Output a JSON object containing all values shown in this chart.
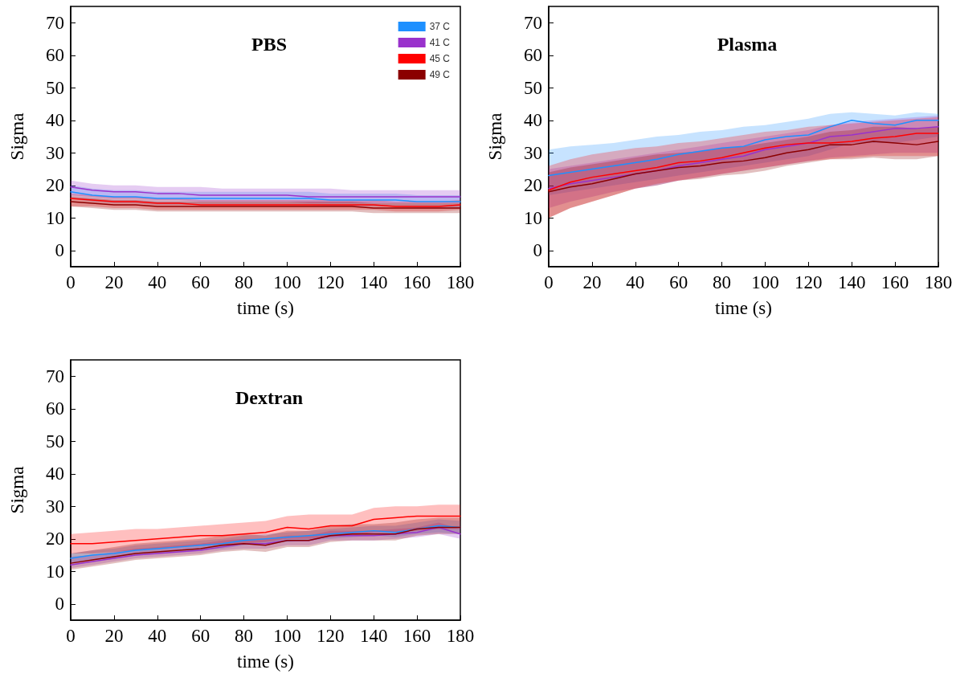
{
  "chart_data": [
    {
      "type": "line",
      "title": "PBS",
      "xlabel": "time (s)",
      "ylabel": "Sigma",
      "legend": "top right",
      "xlim": [
        0,
        180
      ],
      "xticks": [
        0,
        20,
        40,
        60,
        80,
        100,
        120,
        140,
        160,
        180
      ],
      "ylim": [
        -5,
        75
      ],
      "yticks": [
        0,
        10,
        20,
        30,
        40,
        50,
        60,
        70
      ],
      "x": [
        0,
        10,
        20,
        30,
        40,
        50,
        60,
        70,
        80,
        90,
        100,
        110,
        120,
        130,
        140,
        150,
        160,
        170,
        180
      ],
      "series": [
        {
          "name": "37 C",
          "color": "#1e90ff",
          "values": [
            18,
            17,
            16.5,
            16.5,
            16,
            16,
            16,
            16,
            16,
            16,
            16,
            16,
            15.5,
            15.5,
            15.5,
            15.5,
            15,
            15,
            15
          ],
          "lower": [
            16,
            15,
            14.5,
            14.5,
            14,
            14,
            14,
            14,
            14,
            14,
            14,
            14,
            13.5,
            13.5,
            13.5,
            13.5,
            13,
            13,
            13
          ],
          "upper": [
            20,
            19,
            18.5,
            18.5,
            18,
            18,
            18,
            18,
            18,
            18,
            18,
            18,
            17.5,
            17.5,
            17.5,
            17.5,
            17,
            17,
            17
          ]
        },
        {
          "name": "41 C",
          "color": "#9932cc",
          "values": [
            19.5,
            18.5,
            18,
            18,
            17.5,
            17.5,
            17,
            17,
            17,
            17,
            17,
            16.5,
            16.5,
            16.5,
            16.5,
            16.5,
            16.5,
            16.5,
            16.5
          ],
          "lower": [
            17,
            16.5,
            16,
            16,
            15.5,
            15.5,
            15,
            15,
            15,
            15,
            15,
            14.5,
            14.5,
            14.5,
            14.5,
            14.5,
            14.5,
            14.5,
            14.5
          ],
          "upper": [
            21.5,
            20.5,
            20,
            20,
            19.5,
            19.5,
            19.5,
            19,
            19,
            19,
            19,
            19,
            19,
            18.5,
            18.5,
            18.5,
            18.5,
            18.5,
            18.5
          ]
        },
        {
          "name": "45 C",
          "color": "#ff0000",
          "values": [
            16,
            15.5,
            15,
            15,
            14.5,
            14.5,
            14,
            14,
            14,
            14,
            14,
            14,
            14,
            14,
            14,
            13.5,
            13.5,
            13.5,
            14
          ],
          "lower": [
            13.5,
            13.5,
            13,
            13,
            12.5,
            12.5,
            12.5,
            12.5,
            12.5,
            12.5,
            12.5,
            12.5,
            12.5,
            12.5,
            12.5,
            12,
            12,
            12,
            12.5
          ],
          "upper": [
            17.5,
            17,
            16.5,
            16.5,
            16,
            16,
            15.5,
            15.5,
            15.5,
            15.5,
            15.5,
            15.5,
            15.5,
            15.5,
            15.5,
            15,
            15,
            15,
            15.5
          ]
        },
        {
          "name": "49 C",
          "color": "#8b0000",
          "values": [
            15,
            14.5,
            14,
            14,
            13.5,
            13.5,
            13.5,
            13.5,
            13.5,
            13.5,
            13.5,
            13.5,
            13.5,
            13.5,
            13,
            13,
            13,
            13,
            13
          ],
          "lower": [
            13.5,
            13,
            12.5,
            12.5,
            12,
            12,
            12,
            12,
            12,
            12,
            12,
            12,
            12,
            12,
            11.5,
            11.5,
            11.5,
            11.5,
            11.5
          ],
          "upper": [
            16.5,
            16,
            15.5,
            15.5,
            15,
            15,
            15,
            15,
            15,
            15,
            15,
            15,
            15,
            15,
            14.5,
            14.5,
            14.5,
            14.5,
            14.5
          ]
        }
      ]
    },
    {
      "type": "line",
      "title": "Plasma",
      "xlabel": "time (s)",
      "ylabel": "Sigma",
      "xlim": [
        0,
        180
      ],
      "xticks": [
        0,
        20,
        40,
        60,
        80,
        100,
        120,
        140,
        160,
        180
      ],
      "ylim": [
        -5,
        75
      ],
      "yticks": [
        0,
        10,
        20,
        30,
        40,
        50,
        60,
        70
      ],
      "x": [
        0,
        10,
        20,
        30,
        40,
        50,
        60,
        70,
        80,
        90,
        100,
        110,
        120,
        130,
        140,
        150,
        160,
        170,
        180
      ],
      "series": [
        {
          "color": "#1e90ff",
          "values": [
            23,
            24,
            25,
            26,
            27,
            28,
            29.5,
            30.5,
            31.5,
            32,
            34,
            35,
            35.5,
            38,
            40,
            39,
            38.5,
            40,
            40
          ],
          "lower": [
            17,
            18,
            19,
            20,
            21,
            22,
            23,
            24,
            25,
            26,
            27,
            28,
            29,
            31,
            33,
            33,
            33,
            34,
            35
          ],
          "upper": [
            31,
            32,
            32.5,
            33,
            34,
            35,
            35.5,
            36.5,
            37,
            38,
            38.5,
            39.5,
            40.5,
            42,
            42.5,
            42,
            41.5,
            42.5,
            42
          ]
        },
        {
          "color": "#9932cc",
          "values": [
            19,
            20.5,
            21.5,
            22.5,
            23.5,
            24.5,
            26,
            27,
            28,
            29,
            31,
            32,
            33,
            35,
            35.5,
            36.5,
            37.5,
            37.5,
            38
          ],
          "lower": [
            13,
            15,
            16.5,
            18,
            19,
            20,
            21.5,
            22.5,
            23.5,
            24.5,
            25.5,
            26.5,
            27.5,
            28.5,
            29,
            29.5,
            30,
            30,
            30
          ],
          "upper": [
            25,
            26,
            27,
            28,
            29,
            30,
            31,
            32,
            33,
            34,
            35,
            36,
            37,
            38.5,
            39.5,
            40,
            40.5,
            41,
            41.5
          ]
        },
        {
          "color": "#ff0000",
          "values": [
            18.5,
            21,
            22.5,
            23.5,
            24.5,
            25.5,
            27,
            27.5,
            28.5,
            30,
            31.5,
            32.5,
            33,
            33,
            33.5,
            34.5,
            35,
            36,
            36
          ],
          "lower": [
            10,
            13,
            15,
            17,
            19,
            20.5,
            21.5,
            22.5,
            23.5,
            24.5,
            25.5,
            26.5,
            27.5,
            28,
            28.5,
            29,
            29,
            29,
            29
          ],
          "upper": [
            26,
            28,
            29.5,
            30.5,
            31.5,
            32,
            33,
            33.5,
            34.5,
            35.5,
            36.5,
            37,
            38,
            38.5,
            39,
            39.5,
            40,
            40.5,
            41
          ]
        },
        {
          "color": "#8b0000",
          "values": [
            18,
            19.5,
            20.5,
            22,
            23.5,
            24.5,
            25.5,
            26,
            27,
            27.5,
            28.5,
            30,
            31,
            32.5,
            32.5,
            33.5,
            33,
            32.5,
            33.5
          ],
          "lower": [
            10,
            13,
            15,
            17,
            19,
            20,
            21.5,
            22,
            23,
            23.5,
            24.5,
            26,
            27,
            28,
            28,
            28.5,
            28,
            28,
            29
          ],
          "upper": [
            24,
            25.5,
            26.5,
            27.5,
            28.5,
            29.5,
            30,
            30.5,
            31.5,
            32,
            33,
            34,
            35,
            36.5,
            37,
            38,
            38,
            37.5,
            38
          ]
        }
      ]
    },
    {
      "type": "line",
      "title": "Dextran",
      "xlabel": "time (s)",
      "ylabel": "Sigma",
      "xlim": [
        0,
        180
      ],
      "xticks": [
        0,
        20,
        40,
        60,
        80,
        100,
        120,
        140,
        160,
        180
      ],
      "ylim": [
        -5,
        75
      ],
      "yticks": [
        0,
        10,
        20,
        30,
        40,
        50,
        60,
        70
      ],
      "x": [
        0,
        10,
        20,
        30,
        40,
        50,
        60,
        70,
        80,
        90,
        100,
        110,
        120,
        130,
        140,
        150,
        160,
        170,
        180
      ],
      "series": [
        {
          "color": "#1e90ff",
          "values": [
            14,
            15,
            15.5,
            16.5,
            17,
            17.5,
            18,
            18.5,
            19.5,
            20,
            20.5,
            21,
            21.5,
            22,
            22.5,
            22,
            23,
            24,
            23.5
          ],
          "lower": [
            12.5,
            13.5,
            14,
            15,
            15.5,
            16,
            16.5,
            17,
            18,
            18.5,
            19,
            19.5,
            20,
            20.5,
            21,
            20.5,
            21.5,
            22,
            21.5
          ],
          "upper": [
            15.5,
            16.5,
            17,
            18,
            18.5,
            19,
            19.5,
            20,
            21,
            21.5,
            22,
            22.5,
            23,
            23.5,
            24,
            24,
            25,
            26,
            25.5
          ]
        },
        {
          "color": "#9932cc",
          "values": [
            12,
            13,
            14,
            15,
            15.5,
            16,
            16.5,
            17.5,
            18.5,
            18.5,
            19.5,
            19.5,
            21,
            21,
            21,
            21.5,
            22,
            23.5,
            21.5
          ],
          "lower": [
            11,
            12,
            13,
            14,
            14.5,
            15,
            15.5,
            16.5,
            17,
            17,
            18,
            18,
            19.5,
            19.5,
            19.5,
            20,
            20.5,
            21.5,
            20
          ],
          "upper": [
            14.5,
            15,
            16,
            17,
            17.5,
            18,
            18.5,
            19.5,
            20,
            20,
            21,
            21,
            22.5,
            22.5,
            22.5,
            23,
            23.5,
            25,
            23
          ]
        },
        {
          "color": "#ff0000",
          "values": [
            18.5,
            18.5,
            19,
            19.5,
            20,
            20.5,
            21,
            21,
            21.5,
            22,
            23.5,
            23,
            24,
            24,
            26,
            26.5,
            27,
            27,
            27
          ],
          "lower": [
            15.5,
            15.5,
            16,
            16.5,
            17,
            17.5,
            18,
            18,
            18.5,
            19,
            20,
            20,
            20.5,
            21,
            22,
            22,
            22.5,
            23,
            23
          ],
          "upper": [
            21.5,
            22,
            22.5,
            23,
            23,
            23.5,
            24,
            24.5,
            25,
            25.5,
            27,
            27.5,
            27.5,
            27.5,
            29.5,
            30,
            30,
            30.5,
            30.5
          ]
        },
        {
          "color": "#8b0000",
          "values": [
            12.5,
            13.5,
            14.5,
            15.5,
            16,
            16.5,
            17,
            18,
            18.5,
            18,
            19.5,
            19.5,
            21,
            21.5,
            21.5,
            21.5,
            23,
            23.5,
            23.5
          ],
          "lower": [
            10.5,
            11.5,
            12.5,
            13.5,
            14,
            14.5,
            15,
            16,
            16.5,
            16,
            17.5,
            17.5,
            19,
            19.5,
            19.5,
            19.5,
            21,
            21.5,
            21.5
          ],
          "upper": [
            15.5,
            16.5,
            17.5,
            18.5,
            19,
            19.5,
            20,
            21,
            21.5,
            21,
            22.5,
            22.5,
            24,
            24.5,
            24.5,
            25,
            26,
            26.5,
            26.5
          ]
        }
      ]
    }
  ]
}
